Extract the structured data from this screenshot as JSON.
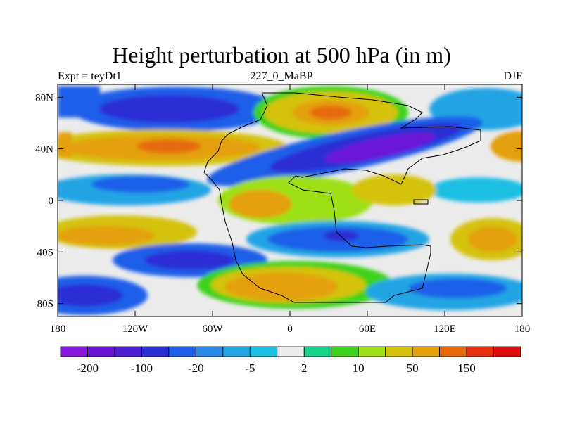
{
  "figure": {
    "title": "Height perturbation at 500 hPa (in m)",
    "left_label": "Expt = teyDt1",
    "center_label": "227_0_MaBP",
    "right_label": "DJF"
  },
  "map": {
    "projection": "cylindrical equidistant",
    "lon_range": [
      -180,
      180
    ],
    "lat_range": [
      -90,
      90
    ]
  },
  "axes": {
    "x_ticks": [
      {
        "value": -180,
        "label": "180"
      },
      {
        "value": -120,
        "label": "120W"
      },
      {
        "value": -60,
        "label": "60W"
      },
      {
        "value": 0,
        "label": "0"
      },
      {
        "value": 60,
        "label": "60E"
      },
      {
        "value": 120,
        "label": "120E"
      },
      {
        "value": 180,
        "label": "180"
      }
    ],
    "y_ticks": [
      {
        "value": 80,
        "label": "80N"
      },
      {
        "value": 40,
        "label": "40N"
      },
      {
        "value": 0,
        "label": "0"
      },
      {
        "value": -40,
        "label": "40S"
      },
      {
        "value": -80,
        "label": "80S"
      }
    ]
  },
  "colorbar": {
    "colors": [
      "#8a17e0",
      "#6a12d8",
      "#4c1fd2",
      "#2a2fd4",
      "#1d5fe8",
      "#2889e6",
      "#24a4e4",
      "#1bbfe4",
      "#ececec",
      "#18d488",
      "#3ed21a",
      "#9ee018",
      "#d4c20c",
      "#e4a00a",
      "#e66a0a",
      "#e43210",
      "#dc0c0c"
    ],
    "labels": [
      {
        "boundary": 1,
        "text": "-200"
      },
      {
        "boundary": 3,
        "text": "-100"
      },
      {
        "boundary": 5,
        "text": "-20"
      },
      {
        "boundary": 7,
        "text": "-5"
      },
      {
        "boundary": 9,
        "text": "2"
      },
      {
        "boundary": 11,
        "text": "10"
      },
      {
        "boundary": 13,
        "text": "50"
      },
      {
        "boundary": 15,
        "text": "150"
      }
    ]
  }
}
